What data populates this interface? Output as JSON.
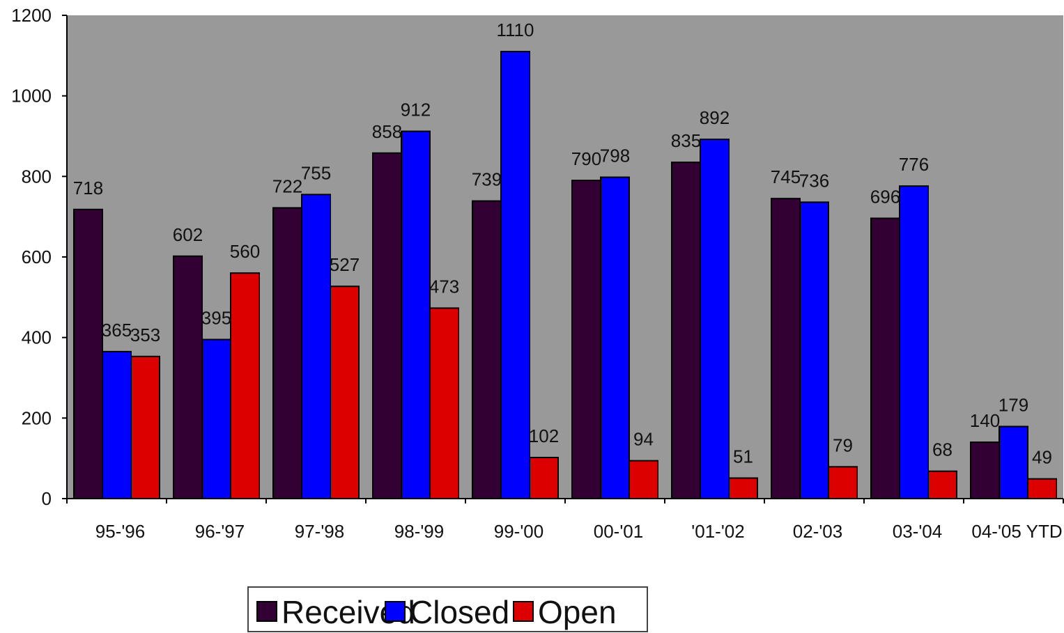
{
  "chart_data": {
    "type": "bar",
    "title": "",
    "xlabel": "",
    "ylabel": "",
    "ylim": [
      0,
      1200
    ],
    "yticks": [
      0,
      200,
      400,
      600,
      800,
      1000,
      1200
    ],
    "ytick_labels": [
      "0",
      "200",
      "400",
      "600",
      "800",
      "1000",
      "1200"
    ],
    "grid": false,
    "legend_position": "bottom-center",
    "background_color": "#999999",
    "categories": [
      "95-'96",
      "96-'97",
      "97-'98",
      "98-'99",
      "99-'00",
      "00-'01",
      "'01-'02",
      "02-'03",
      "03-'04",
      "04-'05 YTD"
    ],
    "series": [
      {
        "name": "Received",
        "color": "#330033",
        "values": [
          718,
          602,
          722,
          858,
          739,
          790,
          835,
          745,
          696,
          140
        ],
        "labels": [
          "718",
          "602",
          "722",
          "858",
          "739",
          "790",
          "835",
          "745",
          "696",
          "140"
        ]
      },
      {
        "name": "Closed",
        "color": "#0000ff",
        "values": [
          365,
          395,
          755,
          912,
          1110,
          798,
          892,
          736,
          776,
          179
        ],
        "labels": [
          "365",
          "395",
          "755",
          "912",
          "1110",
          "798",
          "892",
          "736",
          "776",
          "179"
        ]
      },
      {
        "name": "Open",
        "color": "#dd0000",
        "values": [
          353,
          560,
          527,
          473,
          102,
          94,
          51,
          79,
          68,
          49
        ],
        "labels": [
          "353",
          "560",
          "527",
          "473",
          "102",
          "94",
          "51",
          "79",
          "68",
          "49"
        ]
      }
    ]
  }
}
